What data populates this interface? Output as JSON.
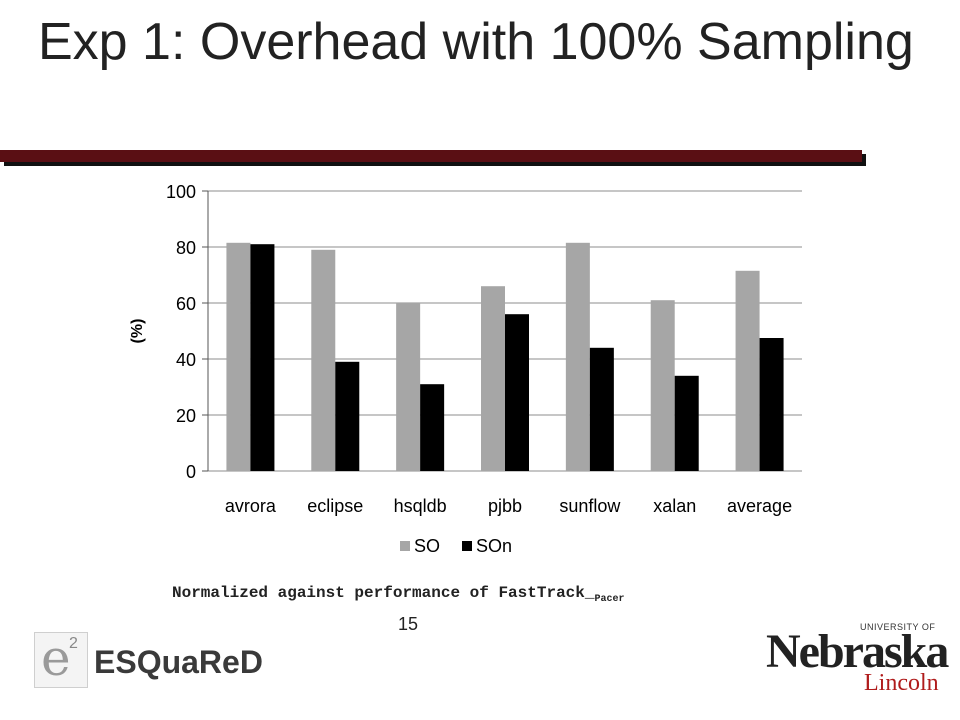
{
  "slide": {
    "title": "Exp 1: Overhead with 100% Sampling",
    "caption_main": "Normalized against performance of FastTrack_",
    "caption_sub": "Pacer",
    "page_number": "15",
    "accent_color": "#5a0f14"
  },
  "logos": {
    "esquared": {
      "mark": "e",
      "superscript": "2",
      "wordmark": "ESQuaReD"
    },
    "nebraska": {
      "university_line": "UNIVERSITY OF",
      "name": "Nebraska",
      "campus": "Lincoln"
    }
  },
  "chart_data": {
    "type": "bar",
    "categories": [
      "avrora",
      "eclipse",
      "hsqldb",
      "pjbb",
      "sunflow",
      "xalan",
      "average"
    ],
    "series": [
      {
        "name": "SO",
        "color": "#a6a6a6",
        "values": [
          81.5,
          79,
          60,
          66,
          81.5,
          61,
          71.5
        ]
      },
      {
        "name": "SOn",
        "color": "#000000",
        "values": [
          81,
          39,
          31,
          56,
          44,
          34,
          47.5
        ]
      }
    ],
    "title": "",
    "xlabel": "",
    "ylabel": "(%)",
    "ylim": [
      0,
      100
    ],
    "yticks": [
      0,
      20,
      40,
      60,
      80,
      100
    ],
    "grid": true,
    "legend_position": "bottom"
  }
}
